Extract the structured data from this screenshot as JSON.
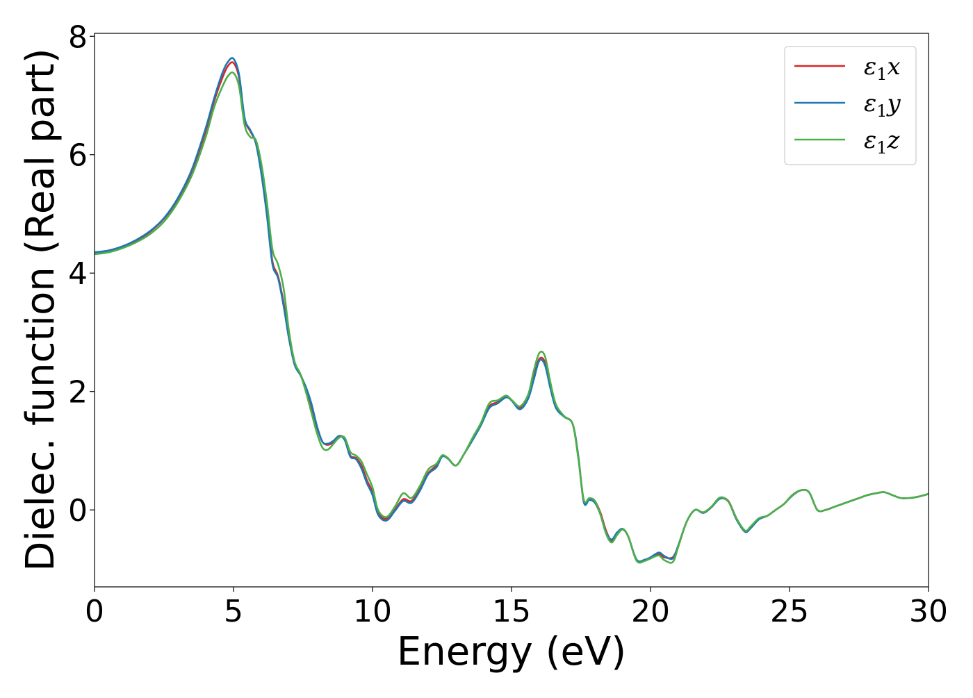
{
  "chart_data": {
    "type": "line",
    "title": "",
    "xlabel": "Energy (eV)",
    "ylabel": "Dielec. function (Real part)",
    "xlim": [
      0,
      30
    ],
    "ylim": [
      -1.3,
      8.05
    ],
    "x_ticks": [
      "0",
      "5",
      "10",
      "15",
      "20",
      "25",
      "30"
    ],
    "y_ticks": [
      "0",
      "2",
      "4",
      "6",
      "8"
    ],
    "grid": false,
    "legend_position": "top-right",
    "series": [
      {
        "name": "ε1x",
        "legend_main": "ε",
        "legend_sub": "1",
        "legend_var": "x",
        "color": "#d62728",
        "x": [
          0,
          0.5,
          1,
          1.5,
          2,
          2.5,
          3,
          3.5,
          4,
          4.3,
          4.6,
          4.8,
          5,
          5.2,
          5.4,
          5.6,
          5.8,
          6,
          6.2,
          6.4,
          6.6,
          6.8,
          7,
          7.2,
          7.4,
          7.6,
          7.8,
          8,
          8.2,
          8.4,
          8.6,
          8.8,
          9,
          9.2,
          9.4,
          9.6,
          9.8,
          10,
          10.2,
          10.5,
          10.8,
          11.1,
          11.4,
          11.7,
          12,
          12.3,
          12.5,
          12.7,
          13,
          13.3,
          13.6,
          13.9,
          14.2,
          14.5,
          14.8,
          15,
          15.3,
          15.6,
          15.8,
          16,
          16.2,
          16.4,
          16.6,
          16.9,
          17.2,
          17.4,
          17.6,
          17.8,
          18,
          18.2,
          18.4,
          18.6,
          18.8,
          19,
          19.2,
          19.5,
          19.8,
          20,
          20.3,
          20.5,
          20.8,
          21,
          21.3,
          21.6,
          21.9,
          22.2,
          22.5,
          22.8,
          23.1,
          23.4,
          23.6,
          23.9,
          24.2,
          24.5,
          24.8,
          25.1,
          25.4,
          25.7,
          26,
          26.3,
          26.6,
          26.9,
          27.2,
          27.5,
          27.8,
          28.1,
          28.4,
          28.7,
          29,
          29.3,
          29.6,
          30
        ],
        "y": [
          4.35,
          4.38,
          4.45,
          4.55,
          4.7,
          4.92,
          5.25,
          5.72,
          6.4,
          6.9,
          7.3,
          7.5,
          7.55,
          7.3,
          6.6,
          6.4,
          6.2,
          5.7,
          5.0,
          4.2,
          3.95,
          3.5,
          2.9,
          2.45,
          2.3,
          2.05,
          1.75,
          1.4,
          1.15,
          1.1,
          1.15,
          1.25,
          1.2,
          0.92,
          0.88,
          0.75,
          0.5,
          0.3,
          -0.05,
          -0.15,
          0.0,
          0.18,
          0.15,
          0.35,
          0.62,
          0.75,
          0.9,
          0.88,
          0.75,
          0.95,
          1.2,
          1.45,
          1.75,
          1.82,
          1.92,
          1.85,
          1.72,
          1.9,
          2.25,
          2.55,
          2.5,
          2.1,
          1.75,
          1.58,
          1.45,
          0.9,
          0.15,
          0.18,
          0.15,
          -0.05,
          -0.35,
          -0.52,
          -0.4,
          -0.33,
          -0.45,
          -0.85,
          -0.85,
          -0.82,
          -0.75,
          -0.8,
          -0.8,
          -0.6,
          -0.2,
          0.0,
          -0.05,
          0.05,
          0.2,
          0.15,
          -0.15,
          -0.35,
          -0.3,
          -0.15,
          -0.1,
          0.0,
          0.1,
          0.25,
          0.33,
          0.3,
          0.0,
          0.0,
          0.05,
          0.1,
          0.15,
          0.2,
          0.25,
          0.28,
          0.3,
          0.25,
          0.2,
          0.2,
          0.22,
          0.27
        ]
      },
      {
        "name": "ε1y",
        "legend_main": "ε",
        "legend_sub": "1",
        "legend_var": "y",
        "color": "#1f77b4",
        "x": [
          0,
          0.5,
          1,
          1.5,
          2,
          2.5,
          3,
          3.5,
          4,
          4.3,
          4.6,
          4.8,
          5,
          5.2,
          5.4,
          5.6,
          5.8,
          6,
          6.2,
          6.4,
          6.6,
          6.8,
          7,
          7.2,
          7.4,
          7.6,
          7.8,
          8,
          8.2,
          8.4,
          8.6,
          8.8,
          9,
          9.2,
          9.4,
          9.6,
          9.8,
          10,
          10.2,
          10.5,
          10.8,
          11.1,
          11.4,
          11.7,
          12,
          12.3,
          12.5,
          12.7,
          13,
          13.3,
          13.6,
          13.9,
          14.2,
          14.5,
          14.8,
          15,
          15.3,
          15.6,
          15.8,
          16,
          16.2,
          16.4,
          16.6,
          16.9,
          17.2,
          17.4,
          17.6,
          17.8,
          18,
          18.2,
          18.4,
          18.6,
          18.8,
          19,
          19.2,
          19.5,
          19.8,
          20,
          20.3,
          20.5,
          20.8,
          21,
          21.3,
          21.6,
          21.9,
          22.2,
          22.5,
          22.8,
          23.1,
          23.4,
          23.6,
          23.9,
          24.2,
          24.5,
          24.8,
          25.1,
          25.4,
          25.7,
          26,
          26.3,
          26.6,
          26.9,
          27.2,
          27.5,
          27.8,
          28.1,
          28.4,
          28.7,
          29,
          29.3,
          29.6,
          30
        ],
        "y": [
          4.35,
          4.38,
          4.45,
          4.56,
          4.71,
          4.93,
          5.27,
          5.75,
          6.45,
          6.95,
          7.38,
          7.57,
          7.62,
          7.35,
          6.62,
          6.42,
          6.2,
          5.68,
          4.98,
          4.15,
          3.92,
          3.45,
          2.88,
          2.45,
          2.28,
          2.08,
          1.8,
          1.42,
          1.15,
          1.12,
          1.17,
          1.25,
          1.18,
          0.9,
          0.86,
          0.7,
          0.45,
          0.25,
          -0.08,
          -0.18,
          -0.02,
          0.15,
          0.12,
          0.32,
          0.6,
          0.72,
          0.9,
          0.87,
          0.75,
          0.95,
          1.18,
          1.43,
          1.72,
          1.8,
          1.9,
          1.85,
          1.7,
          1.88,
          2.2,
          2.52,
          2.45,
          2.05,
          1.72,
          1.57,
          1.45,
          0.92,
          0.13,
          0.17,
          0.12,
          -0.08,
          -0.38,
          -0.5,
          -0.38,
          -0.32,
          -0.45,
          -0.84,
          -0.84,
          -0.8,
          -0.72,
          -0.78,
          -0.82,
          -0.6,
          -0.2,
          0.0,
          -0.05,
          0.05,
          0.19,
          0.14,
          -0.17,
          -0.37,
          -0.31,
          -0.16,
          -0.1,
          0.0,
          0.1,
          0.24,
          0.33,
          0.3,
          0.0,
          0.0,
          0.05,
          0.1,
          0.15,
          0.2,
          0.25,
          0.28,
          0.3,
          0.25,
          0.2,
          0.2,
          0.22,
          0.27
        ]
      },
      {
        "name": "ε1z",
        "legend_main": "ε",
        "legend_sub": "1",
        "legend_var": "z",
        "color": "#4daf4a",
        "x": [
          0,
          0.5,
          1,
          1.5,
          2,
          2.5,
          3,
          3.5,
          4,
          4.3,
          4.6,
          4.8,
          5,
          5.2,
          5.4,
          5.6,
          5.8,
          6,
          6.2,
          6.4,
          6.6,
          6.8,
          7,
          7.2,
          7.4,
          7.6,
          7.8,
          8,
          8.2,
          8.4,
          8.6,
          8.8,
          9,
          9.2,
          9.4,
          9.6,
          9.8,
          10,
          10.2,
          10.5,
          10.8,
          11.1,
          11.4,
          11.7,
          12,
          12.3,
          12.5,
          12.7,
          13,
          13.3,
          13.6,
          13.9,
          14.2,
          14.5,
          14.8,
          15,
          15.3,
          15.6,
          15.8,
          16,
          16.2,
          16.4,
          16.6,
          16.9,
          17.2,
          17.4,
          17.6,
          17.8,
          18,
          18.2,
          18.4,
          18.6,
          18.8,
          19,
          19.2,
          19.5,
          19.8,
          20,
          20.3,
          20.5,
          20.8,
          21,
          21.3,
          21.6,
          21.9,
          22.2,
          22.5,
          22.8,
          23.1,
          23.4,
          23.6,
          23.9,
          24.2,
          24.5,
          24.8,
          25.1,
          25.4,
          25.7,
          26,
          26.3,
          26.6,
          26.9,
          27.2,
          27.5,
          27.8,
          28.1,
          28.4,
          28.7,
          29,
          29.3,
          29.6,
          30
        ],
        "y": [
          4.32,
          4.35,
          4.42,
          4.52,
          4.66,
          4.87,
          5.2,
          5.65,
          6.3,
          6.8,
          7.15,
          7.33,
          7.38,
          7.15,
          6.5,
          6.3,
          6.25,
          5.85,
          5.2,
          4.4,
          4.15,
          3.75,
          3.0,
          2.5,
          2.3,
          2.0,
          1.65,
          1.3,
          1.05,
          1.02,
          1.12,
          1.22,
          1.22,
          0.98,
          0.92,
          0.82,
          0.6,
          0.38,
          0.0,
          -0.12,
          0.05,
          0.28,
          0.2,
          0.4,
          0.68,
          0.78,
          0.92,
          0.88,
          0.75,
          0.95,
          1.22,
          1.47,
          1.8,
          1.85,
          1.93,
          1.86,
          1.75,
          1.95,
          2.35,
          2.65,
          2.6,
          2.15,
          1.78,
          1.58,
          1.45,
          0.88,
          0.17,
          0.2,
          0.15,
          -0.08,
          -0.4,
          -0.55,
          -0.42,
          -0.33,
          -0.45,
          -0.86,
          -0.86,
          -0.82,
          -0.77,
          -0.85,
          -0.88,
          -0.62,
          -0.2,
          0.0,
          -0.04,
          0.06,
          0.21,
          0.14,
          -0.15,
          -0.35,
          -0.28,
          -0.14,
          -0.1,
          0.0,
          0.1,
          0.25,
          0.33,
          0.3,
          0.0,
          0.0,
          0.05,
          0.1,
          0.15,
          0.2,
          0.25,
          0.28,
          0.3,
          0.25,
          0.2,
          0.2,
          0.22,
          0.27
        ]
      }
    ]
  }
}
